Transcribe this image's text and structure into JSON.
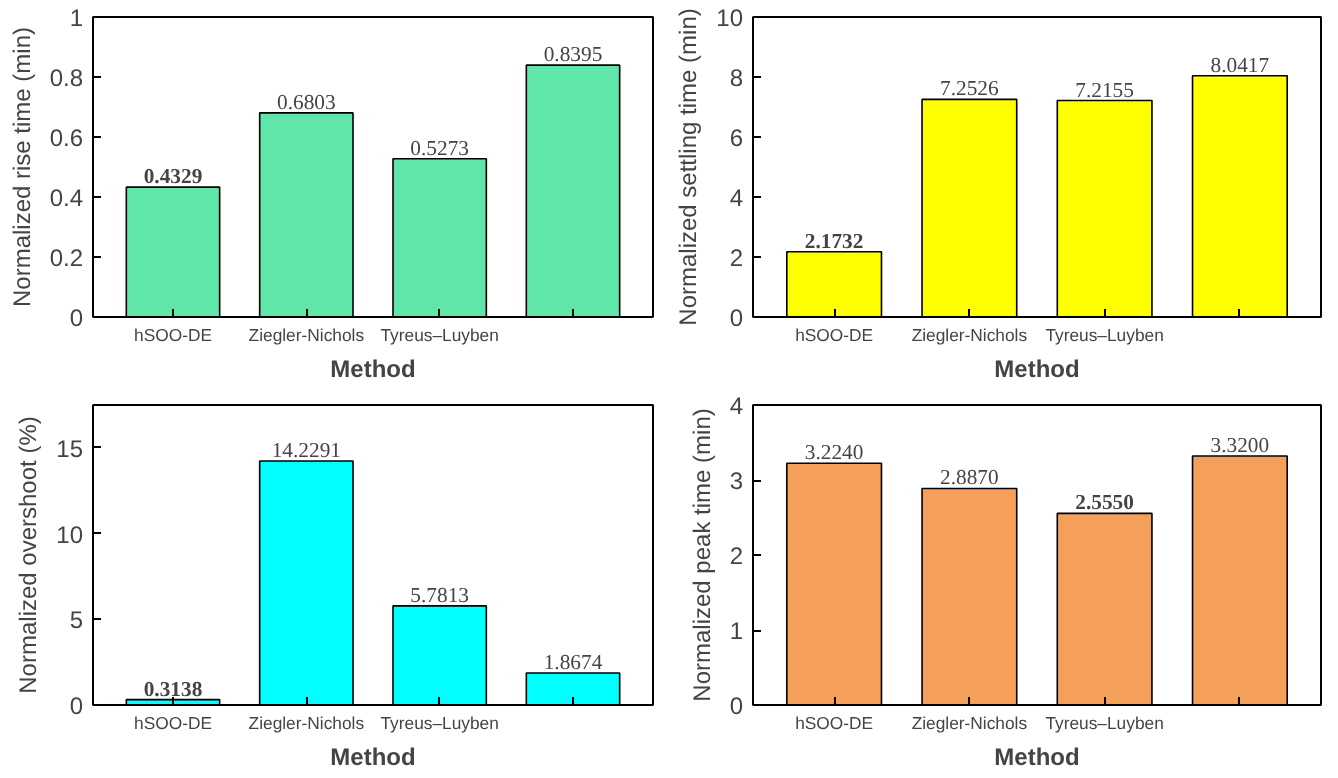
{
  "chart_data": [
    {
      "type": "bar",
      "xlabel": "Method",
      "ylabel": "Normalized rise time (min)",
      "categories": [
        "hSOO-DE",
        "Ziegler-Nichols",
        "Tyreus–Luyben",
        null
      ],
      "values": [
        0.4329,
        0.6803,
        0.5273,
        0.8395
      ],
      "value_labels": [
        "0.4329",
        "0.6803",
        "0.5273",
        "0.8395"
      ],
      "color": "#5fe6a8",
      "ylim": [
        0,
        1
      ],
      "yticks": [
        0,
        0.2,
        0.4,
        0.6,
        0.8,
        1
      ],
      "grid": false
    },
    {
      "type": "bar",
      "xlabel": "Method",
      "ylabel": "Normalized settling time (min)",
      "categories": [
        "hSOO-DE",
        "Ziegler-Nichols",
        "Tyreus–Luyben",
        null
      ],
      "values": [
        2.1732,
        7.2526,
        7.2155,
        8.0417
      ],
      "value_labels": [
        "2.1732",
        "7.2526",
        "7.2155",
        "8.0417"
      ],
      "color": "#ffff00",
      "ylim": [
        0,
        10
      ],
      "yticks": [
        0,
        2,
        4,
        6,
        8,
        10
      ],
      "grid": false
    },
    {
      "type": "bar",
      "xlabel": "Method",
      "ylabel": "Normalized overshoot (%)",
      "categories": [
        "hSOO-DE",
        "Ziegler-Nichols",
        "Tyreus–Luyben",
        null
      ],
      "values": [
        0.3138,
        14.2291,
        5.7813,
        1.8674
      ],
      "value_labels": [
        "0.3138",
        "14.2291",
        "5.7813",
        "1.8674"
      ],
      "color": "#00ffff",
      "ylim": [
        0,
        17.5
      ],
      "yticks": [
        0,
        5,
        10,
        15
      ],
      "grid": false
    },
    {
      "type": "bar",
      "xlabel": "Method",
      "ylabel": "Normalized peak time (min)",
      "categories": [
        "hSOO-DE",
        "Ziegler-Nichols",
        "Tyreus–Luyben",
        null
      ],
      "values": [
        3.224,
        2.887,
        2.555,
        3.32
      ],
      "value_labels": [
        "3.2240",
        "2.8870",
        "2.5550",
        "3.3200"
      ],
      "color": "#f4a05a",
      "ylim": [
        0,
        4
      ],
      "yticks": [
        0,
        1,
        2,
        3,
        4
      ],
      "grid": false
    }
  ]
}
